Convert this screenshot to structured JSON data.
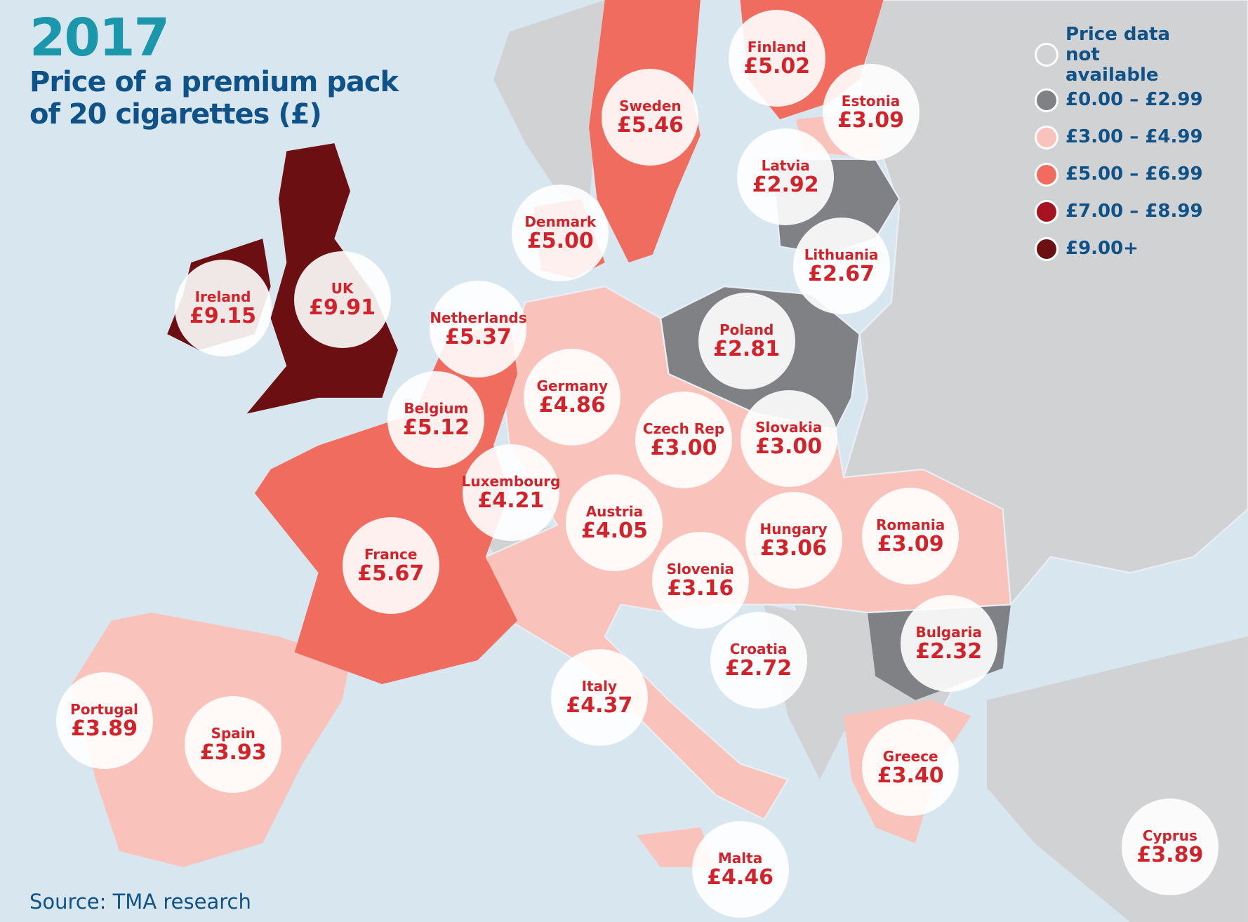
{
  "title": {
    "year": "2017",
    "line1": "Price of a premium pack",
    "line2": "of 20 cigarettes (£)"
  },
  "source": "Source: TMA research",
  "legend": [
    {
      "label": "Price data not available",
      "color": "#d1d2d4"
    },
    {
      "label": "£0.00 – £2.99",
      "color": "#808185"
    },
    {
      "label": "£3.00 – £4.99",
      "color": "#f9c3bb"
    },
    {
      "label": "£5.00 – £6.99",
      "color": "#f06c5e"
    },
    {
      "label": "£7.00 – £8.99",
      "color": "#a6121f"
    },
    {
      "label": "£9.00+",
      "color": "#6b0f12"
    }
  ],
  "countries": [
    {
      "name": "Finland",
      "price": "£5.02"
    },
    {
      "name": "Sweden",
      "price": "£5.46"
    },
    {
      "name": "Estonia",
      "price": "£3.09"
    },
    {
      "name": "Latvia",
      "price": "£2.92"
    },
    {
      "name": "Denmark",
      "price": "£5.00"
    },
    {
      "name": "Lithuania",
      "price": "£2.67"
    },
    {
      "name": "Ireland",
      "price": "£9.15"
    },
    {
      "name": "UK",
      "price": "£9.91"
    },
    {
      "name": "Netherlands",
      "price": "£5.37"
    },
    {
      "name": "Poland",
      "price": "£2.81"
    },
    {
      "name": "Germany",
      "price": "£4.86"
    },
    {
      "name": "Belgium",
      "price": "£5.12"
    },
    {
      "name": "Czech Rep",
      "price": "£3.00"
    },
    {
      "name": "Slovakia",
      "price": "£3.00"
    },
    {
      "name": "Luxembourg",
      "price": "£4.21"
    },
    {
      "name": "Austria",
      "price": "£4.05"
    },
    {
      "name": "Hungary",
      "price": "£3.06"
    },
    {
      "name": "Romania",
      "price": "£3.09"
    },
    {
      "name": "France",
      "price": "£5.67"
    },
    {
      "name": "Slovenia",
      "price": "£3.16"
    },
    {
      "name": "Bulgaria",
      "price": "£2.32"
    },
    {
      "name": "Croatia",
      "price": "£2.72"
    },
    {
      "name": "Italy",
      "price": "£4.37"
    },
    {
      "name": "Portugal",
      "price": "£3.89"
    },
    {
      "name": "Spain",
      "price": "£3.93"
    },
    {
      "name": "Greece",
      "price": "£3.40"
    },
    {
      "name": "Malta",
      "price": "£4.46"
    },
    {
      "name": "Cyprus",
      "price": "£3.89"
    }
  ]
}
